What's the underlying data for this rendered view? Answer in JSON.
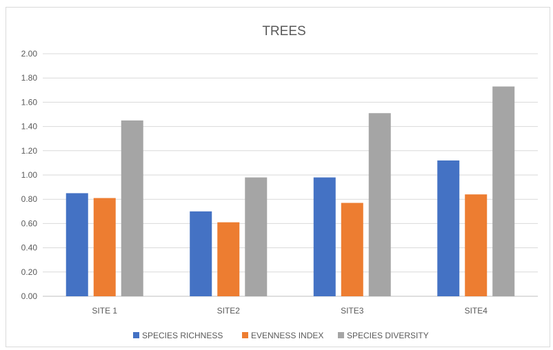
{
  "chart_data": {
    "type": "bar",
    "title": "TREES",
    "xlabel": "",
    "ylabel": "",
    "categories": [
      "SITE 1",
      "SITE2",
      "SITE3",
      "SITE4"
    ],
    "series": [
      {
        "name": "SPECIES RICHNESS",
        "values": [
          0.85,
          0.7,
          0.98,
          1.12
        ],
        "color": "#4472c4"
      },
      {
        "name": "EVENNESS INDEX",
        "values": [
          0.81,
          0.61,
          0.77,
          0.84
        ],
        "color": "#ed7d31"
      },
      {
        "name": "SPECIES DIVERSITY",
        "values": [
          1.45,
          0.98,
          1.51,
          1.73
        ],
        "color": "#a5a5a5"
      }
    ],
    "ylim": [
      0,
      2
    ],
    "yticks": [
      "0.00",
      "0.20",
      "0.40",
      "0.60",
      "0.80",
      "1.00",
      "1.20",
      "1.40",
      "1.60",
      "1.80",
      "2.00"
    ],
    "grid": true,
    "legend_position": "bottom"
  }
}
